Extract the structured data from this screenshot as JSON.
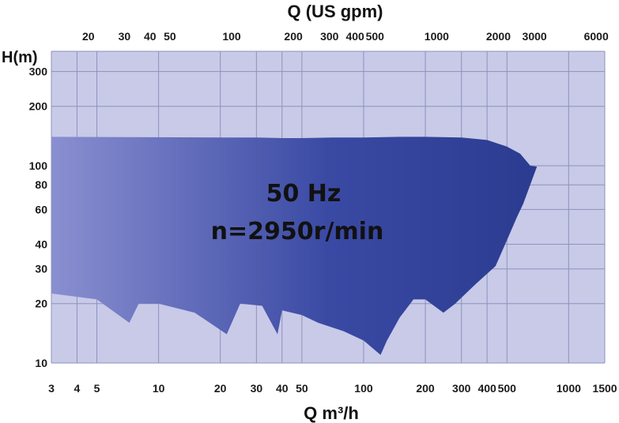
{
  "chart_data": {
    "type": "area",
    "title": "",
    "annotation": [
      "50 Hz",
      "n=2950r/min"
    ],
    "xlabel": "Q m³/h",
    "x2label": "Q (US gpm)",
    "ylabel": "H(m)",
    "x_scale": "log",
    "y_scale": "log",
    "xlim": [
      3,
      1500
    ],
    "ylim": [
      10,
      380
    ],
    "x_ticks": [
      3,
      4,
      5,
      10,
      20,
      30,
      40,
      50,
      100,
      200,
      300,
      400,
      500,
      1000,
      1500
    ],
    "x_tick_labels": [
      "3",
      "4",
      "5",
      "10",
      "20",
      "30",
      "40",
      "50",
      "100",
      "200",
      "300",
      "400",
      "500",
      "1000",
      "1500"
    ],
    "x2_ticks": [
      20,
      30,
      40,
      50,
      100,
      200,
      300,
      400,
      500,
      1000,
      2000,
      3000,
      6000
    ],
    "x2_tick_labels": [
      "20",
      "30",
      "40",
      "50",
      "100",
      "200",
      "300",
      "400",
      "500",
      "1000",
      "2000",
      "3000",
      "6000"
    ],
    "y_ticks": [
      10,
      20,
      30,
      40,
      60,
      80,
      100,
      200,
      300
    ],
    "y_tick_labels": [
      "10",
      "20",
      "30",
      "40",
      "60",
      "80",
      "100",
      "200",
      "300"
    ],
    "grid": true,
    "colors": {
      "plot_background": "#c8cae8",
      "grid": "#8e92bc",
      "fill_light": "#8a8fd0",
      "fill_dark": "#2a3a8e"
    },
    "envelope_upper": {
      "x": [
        3,
        20,
        30,
        40,
        50,
        70,
        100,
        150,
        200,
        300,
        400,
        500,
        580,
        650,
        700
      ],
      "y": [
        140,
        139,
        139,
        138,
        138,
        139,
        139,
        140,
        140,
        139,
        135,
        125,
        115,
        100,
        99
      ]
    },
    "envelope_lower": {
      "x": [
        3,
        5,
        7.2,
        8,
        10,
        15,
        21.5,
        25,
        32,
        38,
        40,
        50,
        60,
        80,
        100,
        121,
        130,
        150,
        175,
        200,
        245,
        280,
        350,
        440,
        500,
        560,
        600
      ],
      "y": [
        22.5,
        21,
        16,
        20,
        20,
        18,
        14,
        20,
        19.5,
        14,
        18.5,
        17.5,
        16,
        14.5,
        13,
        11,
        13,
        17,
        21,
        21,
        18,
        20,
        25,
        31,
        42,
        55,
        64
      ]
    }
  }
}
